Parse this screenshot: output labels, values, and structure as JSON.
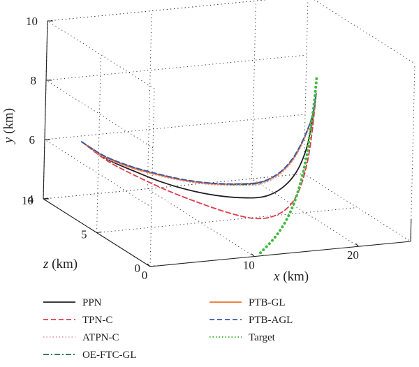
{
  "chart_data": {
    "type": "line3d",
    "title": "",
    "xlabel": {
      "var": "x",
      "unit": " (km)"
    },
    "ylabel": {
      "var": "y",
      "unit": " (km)"
    },
    "zlabel": {
      "var": "z",
      "unit": " (km)"
    },
    "xlim": [
      0,
      25
    ],
    "ylim": [
      4,
      10
    ],
    "zlim": [
      0,
      10
    ],
    "x_ticks": [
      "0",
      "10",
      "20"
    ],
    "y_ticks": [
      "4",
      "6",
      "8",
      "10"
    ],
    "z_ticks": [
      "0",
      "5",
      "10"
    ],
    "grid": true,
    "legend_position": "bottom",
    "series": [
      {
        "name": "PPN",
        "color": "#231f20",
        "dash": "solid",
        "points": [
          [
            2.0,
            6.2,
            8.5
          ],
          [
            4.2,
            5.6,
            8.2
          ],
          [
            6.5,
            5.2,
            7.8
          ],
          [
            8.5,
            4.9,
            7.3
          ],
          [
            10.3,
            4.75,
            6.5
          ],
          [
            11.8,
            4.75,
            5.5
          ],
          [
            13.0,
            4.9,
            4.3
          ],
          [
            13.9,
            5.2,
            3.0
          ],
          [
            14.6,
            5.7,
            2.0
          ],
          [
            15.1,
            6.4,
            1.2
          ],
          [
            15.5,
            7.3,
            0.7
          ],
          [
            15.8,
            8.3,
            0.5
          ],
          [
            16.0,
            9.2,
            0.4
          ]
        ]
      },
      {
        "name": "TPN-C",
        "color": "#e03a4b",
        "dash": "dashed",
        "points": [
          [
            2.0,
            6.2,
            8.5
          ],
          [
            4.2,
            5.55,
            8.2
          ],
          [
            6.6,
            5.05,
            7.7
          ],
          [
            8.9,
            4.65,
            7.0
          ],
          [
            10.9,
            4.4,
            6.0
          ],
          [
            12.4,
            4.3,
            4.8
          ],
          [
            13.5,
            4.35,
            3.6
          ],
          [
            14.3,
            4.6,
            2.6
          ],
          [
            14.9,
            5.1,
            1.7
          ],
          [
            15.3,
            5.8,
            1.1
          ],
          [
            15.6,
            6.8,
            0.7
          ],
          [
            15.8,
            7.9,
            0.5
          ],
          [
            16.0,
            9.2,
            0.4
          ]
        ]
      },
      {
        "name": "ATPN-C",
        "color": "#e8a0a8",
        "dash": "dotted",
        "points": [
          [
            2.0,
            6.2,
            8.5
          ],
          [
            4.0,
            5.65,
            8.3
          ],
          [
            6.2,
            5.3,
            8.0
          ],
          [
            8.2,
            5.1,
            7.5
          ],
          [
            10.0,
            5.0,
            6.8
          ],
          [
            11.6,
            5.05,
            5.8
          ],
          [
            12.9,
            5.25,
            4.6
          ],
          [
            13.8,
            5.55,
            3.3
          ],
          [
            14.5,
            6.05,
            2.3
          ],
          [
            15.0,
            6.7,
            1.5
          ],
          [
            15.4,
            7.5,
            0.9
          ],
          [
            15.8,
            8.4,
            0.5
          ],
          [
            16.0,
            9.2,
            0.4
          ]
        ]
      },
      {
        "name": "OE-FTC-GL",
        "color": "#1e6b44",
        "dash": "dashdot",
        "points": [
          [
            2.0,
            6.2,
            8.5
          ],
          [
            4.0,
            5.7,
            8.3
          ],
          [
            6.3,
            5.32,
            8.0
          ],
          [
            8.3,
            5.12,
            7.5
          ],
          [
            10.1,
            5.02,
            6.8
          ],
          [
            11.7,
            5.08,
            5.8
          ],
          [
            12.9,
            5.28,
            4.6
          ],
          [
            13.8,
            5.6,
            3.3
          ],
          [
            14.5,
            6.1,
            2.3
          ],
          [
            15.0,
            6.75,
            1.5
          ],
          [
            15.4,
            7.55,
            0.9
          ],
          [
            15.8,
            8.45,
            0.5
          ],
          [
            16.0,
            9.2,
            0.4
          ]
        ]
      },
      {
        "name": "PTB-GL",
        "color": "#e8732a",
        "dash": "solid",
        "points": [
          [
            2.0,
            6.2,
            8.5
          ],
          [
            4.0,
            5.68,
            8.3
          ],
          [
            6.2,
            5.32,
            8.0
          ],
          [
            8.2,
            5.12,
            7.5
          ],
          [
            10.0,
            5.03,
            6.8
          ],
          [
            11.6,
            5.08,
            5.8
          ],
          [
            12.9,
            5.3,
            4.6
          ],
          [
            13.8,
            5.62,
            3.3
          ],
          [
            14.5,
            6.1,
            2.3
          ],
          [
            15.0,
            6.75,
            1.5
          ],
          [
            15.4,
            7.55,
            0.9
          ],
          [
            15.8,
            8.45,
            0.5
          ],
          [
            16.0,
            9.2,
            0.4
          ]
        ]
      },
      {
        "name": "PTB-AGL",
        "color": "#3457b8",
        "dash": "dashed",
        "points": [
          [
            2.0,
            6.2,
            8.5
          ],
          [
            4.0,
            5.7,
            8.3
          ],
          [
            6.2,
            5.35,
            8.0
          ],
          [
            8.2,
            5.15,
            7.5
          ],
          [
            10.0,
            5.05,
            6.8
          ],
          [
            11.6,
            5.1,
            5.8
          ],
          [
            12.9,
            5.3,
            4.6
          ],
          [
            13.8,
            5.62,
            3.3
          ],
          [
            14.5,
            6.12,
            2.3
          ],
          [
            15.0,
            6.78,
            1.5
          ],
          [
            15.4,
            7.58,
            0.9
          ],
          [
            15.8,
            8.45,
            0.5
          ],
          [
            16.0,
            9.2,
            0.4
          ]
        ]
      },
      {
        "name": "Target",
        "color": "#3dbb3d",
        "dash": "dotted",
        "points": [
          [
            11.0,
            4.0,
            0.4
          ],
          [
            12.3,
            4.45,
            0.4
          ],
          [
            13.3,
            4.95,
            0.4
          ],
          [
            14.1,
            5.55,
            0.4
          ],
          [
            14.7,
            6.25,
            0.4
          ],
          [
            15.2,
            7.05,
            0.4
          ],
          [
            15.5,
            7.9,
            0.4
          ],
          [
            15.8,
            8.8,
            0.4
          ],
          [
            16.0,
            9.7,
            0.4
          ]
        ]
      }
    ]
  }
}
